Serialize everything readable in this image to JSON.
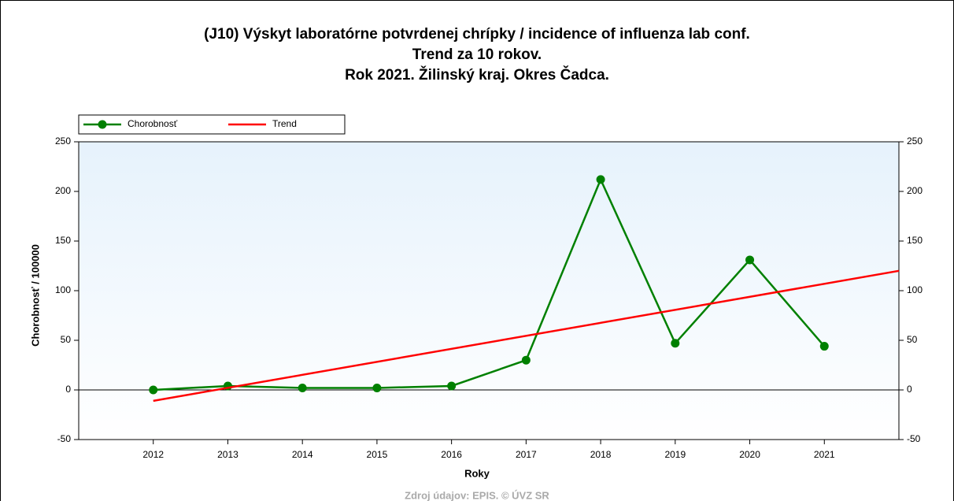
{
  "chart_data": {
    "type": "line",
    "title": [
      "(J10) Výskyt laboratórne potvrdenej chrípky / incidence of influenza lab conf.",
      "Trend za 10 rokov.",
      "Rok 2021. Žilinský kraj. Okres Čadca."
    ],
    "x_label": "Roky",
    "y_label": "Chorobnosť / 100000",
    "source": "Zdroj údajov: EPIS. © ÚVZ SR",
    "xlim": [
      2011,
      2022
    ],
    "xticks": [
      2012,
      2013,
      2014,
      2015,
      2016,
      2017,
      2018,
      2019,
      2020,
      2021
    ],
    "ylim": [
      -50,
      250
    ],
    "yticks": [
      -50,
      0,
      50,
      100,
      150,
      200,
      250
    ],
    "legend": "top-left",
    "series": [
      {
        "name": "Chorobnosť",
        "color": "#008000",
        "markers": true,
        "x": [
          2012,
          2013,
          2014,
          2015,
          2016,
          2017,
          2018,
          2019,
          2020,
          2021
        ],
        "values": [
          0,
          4,
          2,
          2,
          4,
          30,
          212,
          47,
          131,
          44
        ]
      },
      {
        "name": "Trend",
        "color": "#ff0000",
        "markers": false,
        "x": [
          2012,
          2022
        ],
        "values": [
          -11,
          120
        ]
      }
    ]
  }
}
